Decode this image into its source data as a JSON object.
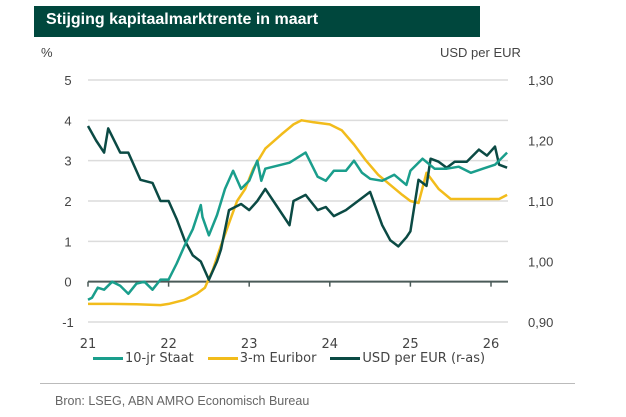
{
  "title": "Stijging kapitaalmarktrente in maart",
  "source": "Bron: LSEG, ABN AMRO Economisch Bureau",
  "chart_data": {
    "type": "line",
    "title": "Stijging kapitaalmarktrente in maart",
    "xlabel": "",
    "ylabel": "%",
    "y2label": "USD per EUR",
    "xlim": [
      21,
      26.2
    ],
    "ylim": [
      -1,
      5
    ],
    "y2lim": [
      0.9,
      1.3
    ],
    "x_ticks": [
      "21",
      "22",
      "23",
      "24",
      "25",
      "26"
    ],
    "x_tick_values": [
      21,
      22,
      23,
      24,
      25,
      26
    ],
    "y_ticks": [
      "5",
      "4",
      "3",
      "2",
      "1",
      "0",
      "-1"
    ],
    "y_tick_values": [
      5,
      4,
      3,
      2,
      1,
      0,
      -1
    ],
    "y2_ticks": [
      "1,30",
      "1,20",
      "1,10",
      "1,00",
      "0,90"
    ],
    "y2_tick_values": [
      1.3,
      1.2,
      1.1,
      1.0,
      0.9
    ],
    "grid": true,
    "legend": "bottom",
    "colors": {
      "staat": "#1a9e8c",
      "euribor": "#f2bc1b",
      "usd": "#0b4a44",
      "title_bg": "#00473d"
    },
    "series": [
      {
        "name": "10-jr Staat",
        "axis": "left",
        "x": [
          21.0,
          21.05,
          21.12,
          21.2,
          21.3,
          21.4,
          21.5,
          21.6,
          21.7,
          21.8,
          21.9,
          22.0,
          22.1,
          22.2,
          22.3,
          22.4,
          22.42,
          22.5,
          22.6,
          22.7,
          22.8,
          22.9,
          23.0,
          23.1,
          23.15,
          23.2,
          23.3,
          23.5,
          23.7,
          23.85,
          23.95,
          24.05,
          24.2,
          24.3,
          24.4,
          24.5,
          24.65,
          24.8,
          24.95,
          25.0,
          25.15,
          25.3,
          25.45,
          25.6,
          25.75,
          25.9,
          26.05,
          26.2
        ],
        "values": [
          -0.45,
          -0.4,
          -0.15,
          -0.2,
          0.0,
          -0.1,
          -0.3,
          -0.05,
          0.0,
          -0.2,
          0.05,
          0.05,
          0.45,
          0.9,
          1.3,
          1.9,
          1.6,
          1.15,
          1.65,
          2.3,
          2.75,
          2.3,
          2.5,
          3.0,
          2.5,
          2.8,
          2.85,
          2.95,
          3.2,
          2.6,
          2.5,
          2.75,
          2.75,
          3.0,
          2.7,
          2.55,
          2.5,
          2.65,
          2.4,
          2.75,
          3.05,
          2.8,
          2.8,
          2.85,
          2.7,
          2.8,
          2.9,
          3.2
        ]
      },
      {
        "name": "3-m Euribor",
        "axis": "left",
        "x": [
          21.0,
          21.3,
          21.6,
          21.9,
          22.0,
          22.2,
          22.35,
          22.45,
          22.55,
          22.65,
          22.75,
          22.85,
          22.95,
          23.05,
          23.2,
          23.4,
          23.55,
          23.65,
          23.8,
          24.0,
          24.15,
          24.3,
          24.45,
          24.6,
          24.75,
          24.9,
          25.0,
          25.1,
          25.2,
          25.35,
          25.5,
          25.7,
          25.9,
          26.1,
          26.2
        ],
        "values": [
          -0.55,
          -0.55,
          -0.56,
          -0.58,
          -0.55,
          -0.45,
          -0.3,
          -0.15,
          0.3,
          0.9,
          1.45,
          2.0,
          2.3,
          2.8,
          3.3,
          3.65,
          3.9,
          4.0,
          3.95,
          3.9,
          3.75,
          3.4,
          3.0,
          2.65,
          2.4,
          2.15,
          2.0,
          1.95,
          2.7,
          2.3,
          2.05,
          2.05,
          2.05,
          2.05,
          2.15
        ]
      },
      {
        "name": "USD per EUR (r-as)",
        "axis": "right",
        "x": [
          21.0,
          21.1,
          21.2,
          21.25,
          21.4,
          21.5,
          21.65,
          21.8,
          21.9,
          22.0,
          22.1,
          22.2,
          22.3,
          22.4,
          22.5,
          22.6,
          22.65,
          22.75,
          22.9,
          23.0,
          23.1,
          23.2,
          23.35,
          23.5,
          23.55,
          23.7,
          23.85,
          23.95,
          24.05,
          24.2,
          24.35,
          24.5,
          24.65,
          24.75,
          24.85,
          24.95,
          25.0,
          25.1,
          25.2,
          25.25,
          25.35,
          25.45,
          25.55,
          25.7,
          25.85,
          25.95,
          26.05,
          26.1,
          26.2
        ],
        "values": [
          1.224,
          1.2,
          1.18,
          1.22,
          1.18,
          1.18,
          1.135,
          1.13,
          1.1,
          1.1,
          1.07,
          1.035,
          1.01,
          1.0,
          0.97,
          1.0,
          1.02,
          1.085,
          1.095,
          1.085,
          1.1,
          1.12,
          1.09,
          1.06,
          1.1,
          1.11,
          1.085,
          1.09,
          1.075,
          1.085,
          1.1,
          1.115,
          1.06,
          1.035,
          1.025,
          1.04,
          1.05,
          1.135,
          1.125,
          1.17,
          1.165,
          1.155,
          1.165,
          1.165,
          1.185,
          1.175,
          1.19,
          1.16,
          1.155
        ]
      }
    ]
  }
}
